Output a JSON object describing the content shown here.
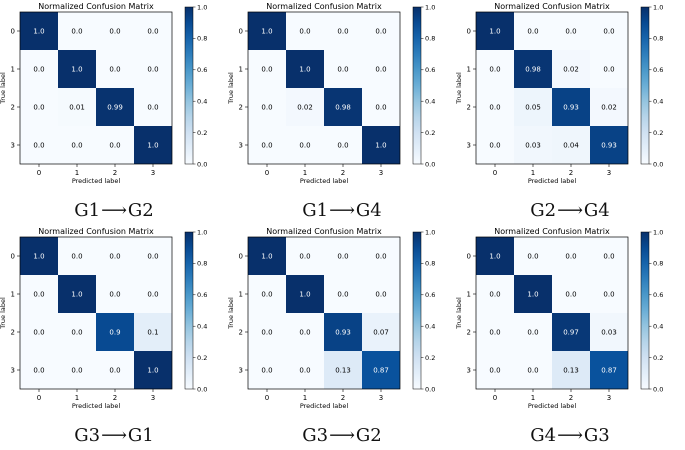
{
  "colors": {
    "cmap_low": "#f7fbff",
    "cmap_high": "#08306b",
    "text_light": "#ffffff",
    "text_dark": "#000000"
  },
  "arrow_symbol": "⟶",
  "colorbar_ticks": [
    "0.0",
    "0.2",
    "0.4",
    "0.6",
    "0.8",
    "1.0"
  ],
  "chart_data": [
    {
      "type": "heatmap",
      "title": "Normalized Confusion Matrix",
      "xlabel": "Predicted label",
      "ylabel": "True label",
      "x_ticks": [
        "0",
        "1",
        "2",
        "3"
      ],
      "y_ticks": [
        "0",
        "1",
        "2",
        "3"
      ],
      "caption_from": "G1",
      "caption_to": "G2",
      "matrix": [
        [
          "1.0",
          "0.0",
          "0.0",
          "0.0"
        ],
        [
          "0.0",
          "1.0",
          "0.0",
          "0.0"
        ],
        [
          "0.0",
          "0.01",
          "0.99",
          "0.0"
        ],
        [
          "0.0",
          "0.0",
          "0.0",
          "1.0"
        ]
      ],
      "clim": [
        0,
        1
      ]
    },
    {
      "type": "heatmap",
      "title": "Normalized Confusion Matrix",
      "xlabel": "Predicted label",
      "ylabel": "True label",
      "x_ticks": [
        "0",
        "1",
        "2",
        "3"
      ],
      "y_ticks": [
        "0",
        "1",
        "2",
        "3"
      ],
      "caption_from": "G1",
      "caption_to": "G4",
      "matrix": [
        [
          "1.0",
          "0.0",
          "0.0",
          "0.0"
        ],
        [
          "0.0",
          "1.0",
          "0.0",
          "0.0"
        ],
        [
          "0.0",
          "0.02",
          "0.98",
          "0.0"
        ],
        [
          "0.0",
          "0.0",
          "0.0",
          "1.0"
        ]
      ],
      "clim": [
        0,
        1
      ]
    },
    {
      "type": "heatmap",
      "title": "Normalized Confusion Matrix",
      "xlabel": "Predicted label",
      "ylabel": "True label",
      "x_ticks": [
        "0",
        "1",
        "2",
        "3"
      ],
      "y_ticks": [
        "0",
        "1",
        "2",
        "3"
      ],
      "caption_from": "G2",
      "caption_to": "G4",
      "matrix": [
        [
          "1.0",
          "0.0",
          "0.0",
          "0.0"
        ],
        [
          "0.0",
          "0.98",
          "0.02",
          "0.0"
        ],
        [
          "0.0",
          "0.05",
          "0.93",
          "0.02"
        ],
        [
          "0.0",
          "0.03",
          "0.04",
          "0.93"
        ]
      ],
      "clim": [
        0,
        1
      ]
    },
    {
      "type": "heatmap",
      "title": "Normalized Confusion Matrix",
      "xlabel": "Predicted label",
      "ylabel": "True label",
      "x_ticks": [
        "0",
        "1",
        "2",
        "3"
      ],
      "y_ticks": [
        "0",
        "1",
        "2",
        "3"
      ],
      "caption_from": "G3",
      "caption_to": "G1",
      "matrix": [
        [
          "1.0",
          "0.0",
          "0.0",
          "0.0"
        ],
        [
          "0.0",
          "1.0",
          "0.0",
          "0.0"
        ],
        [
          "0.0",
          "0.0",
          "0.9",
          "0.1"
        ],
        [
          "0.0",
          "0.0",
          "0.0",
          "1.0"
        ]
      ],
      "clim": [
        0,
        1
      ]
    },
    {
      "type": "heatmap",
      "title": "Normalized Confusion Matrix",
      "xlabel": "Predicted label",
      "ylabel": "True label",
      "x_ticks": [
        "0",
        "1",
        "2",
        "3"
      ],
      "y_ticks": [
        "0",
        "1",
        "2",
        "3"
      ],
      "caption_from": "G3",
      "caption_to": "G2",
      "matrix": [
        [
          "1.0",
          "0.0",
          "0.0",
          "0.0"
        ],
        [
          "0.0",
          "1.0",
          "0.0",
          "0.0"
        ],
        [
          "0.0",
          "0.0",
          "0.93",
          "0.07"
        ],
        [
          "0.0",
          "0.0",
          "0.13",
          "0.87"
        ]
      ],
      "clim": [
        0,
        1
      ]
    },
    {
      "type": "heatmap",
      "title": "Normalized Confusion Matrix",
      "xlabel": "Predicted label",
      "ylabel": "True label",
      "x_ticks": [
        "0",
        "1",
        "2",
        "3"
      ],
      "y_ticks": [
        "0",
        "1",
        "2",
        "3"
      ],
      "caption_from": "G4",
      "caption_to": "G3",
      "matrix": [
        [
          "1.0",
          "0.0",
          "0.0",
          "0.0"
        ],
        [
          "0.0",
          "1.0",
          "0.0",
          "0.0"
        ],
        [
          "0.0",
          "0.0",
          "0.97",
          "0.03"
        ],
        [
          "0.0",
          "0.0",
          "0.13",
          "0.87"
        ]
      ],
      "clim": [
        0,
        1
      ]
    }
  ]
}
